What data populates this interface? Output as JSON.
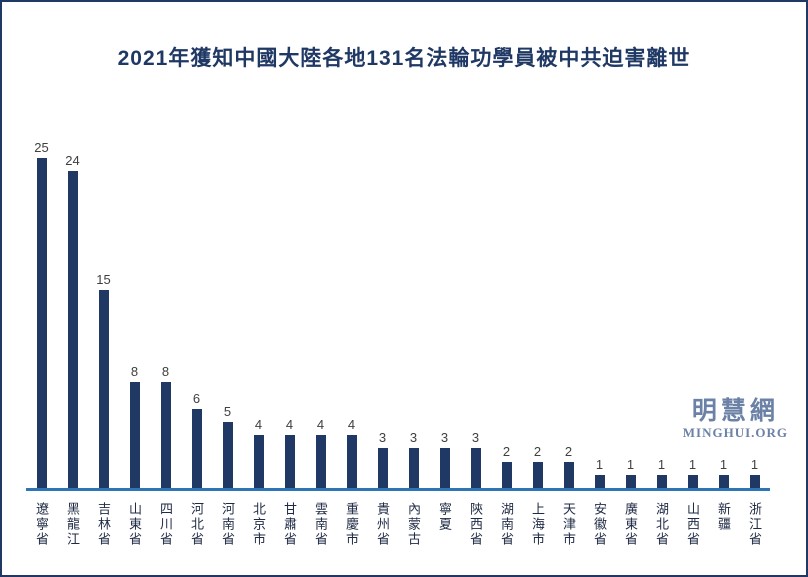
{
  "title": "2021年獲知中國大陸各地131名法輪功學員被中共迫害離世",
  "watermark": {
    "cjk": "明慧網",
    "latin": "MINGHUI.ORG"
  },
  "colors": {
    "bar": "#1F3864",
    "axis_line": "#2E75B6",
    "title": "#1F3864",
    "value_label": "#404040",
    "x_label": "#1F2A44",
    "watermark": "#6B81A6",
    "border": "#1F3864"
  },
  "chart_data": {
    "type": "bar",
    "title": "2021年獲知中國大陸各地131名法輪功學員被中共迫害離世",
    "categories": [
      "遼寧省",
      "黑龍江",
      "吉林省",
      "山東省",
      "四川省",
      "河北省",
      "河南省",
      "北京市",
      "甘肅省",
      "雲南省",
      "重慶市",
      "貴州省",
      "內蒙古",
      "寧夏",
      "陝西省",
      "湖南省",
      "上海市",
      "天津市",
      "安徽省",
      "廣東省",
      "湖北省",
      "山西省",
      "新疆",
      "浙江省"
    ],
    "values": [
      25,
      24,
      15,
      8,
      8,
      6,
      5,
      4,
      4,
      4,
      4,
      3,
      3,
      3,
      3,
      2,
      2,
      2,
      1,
      1,
      1,
      1,
      1,
      1
    ],
    "total": 131,
    "xlabel": "",
    "ylabel": "",
    "ylim": [
      0,
      25
    ],
    "grid": false,
    "legend": "none",
    "data_labels": "above-bars",
    "x_tick_orientation": "vertical-upright"
  }
}
